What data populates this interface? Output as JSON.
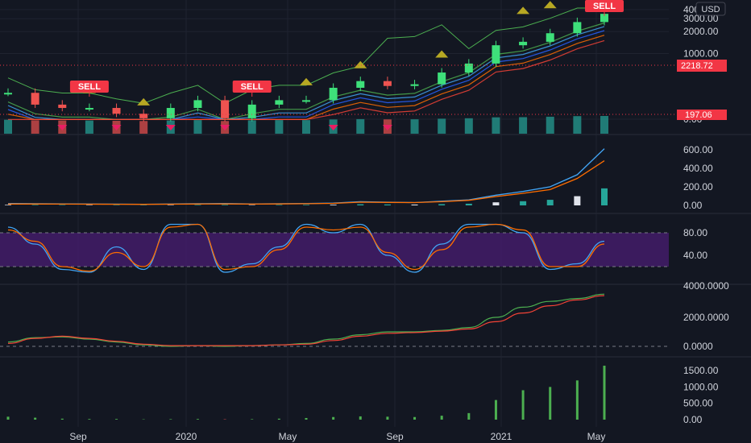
{
  "colors": {
    "background": "#131722",
    "grid": "#1f2330",
    "axis_text": "#d1d4dc",
    "up": "#26a69a",
    "down": "#ef5350",
    "bright_up": "#3ee07a",
    "sell_tag": "#f23645",
    "triangle_up": "#b7a823",
    "triangle_down": "#e91e63",
    "blue": "#2962ff",
    "light_blue": "#42a5f5",
    "orange": "#ff6d00",
    "green": "#4caf50",
    "red_line": "#f44336",
    "purple_band": "#4a1e73",
    "price_label_red": "#f23645"
  },
  "currency_badge": "USD",
  "price_labels": {
    "current": "2218.72",
    "low": "197.06"
  },
  "sell_tags": [
    "SELL",
    "SELL",
    "SELL"
  ],
  "x_axis_labels": [
    "Sep",
    "2020",
    "May",
    "Sep",
    "2021",
    "May"
  ],
  "chart_data": [
    {
      "type": "line",
      "panel": "price",
      "title": "",
      "series_type": "candlestick",
      "y_scale": "log",
      "y_ticks": [
        "4000.00",
        "3000.00",
        "2000.00",
        "1000.00",
        "0.00"
      ],
      "x": [
        "2019-07",
        "2019-08",
        "2019-09",
        "2019-10",
        "2019-11",
        "2019-12",
        "2020-01",
        "2020-02",
        "2020-03",
        "2020-04",
        "2020-05",
        "2020-06",
        "2020-07",
        "2020-08",
        "2020-09",
        "2020-10",
        "2020-11",
        "2020-12",
        "2021-01",
        "2021-02",
        "2021-03",
        "2021-04",
        "2021-05"
      ],
      "series": [
        {
          "values": [
            290,
            200,
            180,
            180,
            150,
            130,
            180,
            230,
            130,
            200,
            230,
            230,
            340,
            420,
            360,
            380,
            550,
            730,
            1300,
            1450,
            1900,
            2700,
            3500
          ]
        }
      ],
      "current_price": 2218.72,
      "low_label": 197.06
    },
    {
      "type": "bar",
      "panel": "volume_oscillator",
      "y_ticks": [
        "600.00",
        "400.00",
        "200.00",
        "0.00"
      ],
      "series": [
        {
          "values": [
            20,
            18,
            16,
            15,
            14,
            12,
            15,
            18,
            20,
            15,
            18,
            20,
            25,
            40,
            35,
            30,
            45,
            60,
            110,
            150,
            200,
            330,
            610
          ]
        },
        {
          "values": [
            15,
            15,
            14,
            13,
            12,
            11,
            13,
            15,
            16,
            14,
            16,
            18,
            22,
            35,
            32,
            30,
            40,
            55,
            95,
            130,
            170,
            290,
            480
          ]
        }
      ]
    },
    {
      "type": "line",
      "panel": "stochastic",
      "y_ticks": [
        "80.00",
        "40.00"
      ],
      "band": [
        20,
        80
      ],
      "series": [
        {
          "values": [
            90,
            60,
            15,
            10,
            55,
            15,
            95,
            95,
            10,
            25,
            55,
            95,
            80,
            95,
            40,
            10,
            60,
            95,
            95,
            80,
            15,
            25,
            65
          ]
        },
        {
          "values": [
            85,
            65,
            20,
            12,
            45,
            20,
            90,
            95,
            15,
            20,
            50,
            90,
            85,
            90,
            45,
            15,
            50,
            90,
            95,
            85,
            20,
            20,
            60
          ]
        }
      ]
    },
    {
      "type": "line",
      "panel": "macd",
      "y_ticks": [
        "4000.0000",
        "2000.0000",
        "0.0000"
      ],
      "series": [
        {
          "values": [
            300,
            600,
            650,
            500,
            300,
            100,
            0,
            50,
            0,
            50,
            100,
            200,
            500,
            800,
            1000,
            1000,
            1100,
            1300,
            2000,
            2700,
            3100,
            3300,
            3600
          ]
        },
        {
          "values": [
            200,
            550,
            700,
            550,
            350,
            150,
            50,
            50,
            50,
            50,
            100,
            150,
            400,
            700,
            900,
            950,
            1050,
            1200,
            1700,
            2300,
            2800,
            3200,
            3500
          ]
        }
      ]
    },
    {
      "type": "bar",
      "panel": "histogram",
      "y_ticks": [
        "1500.00",
        "1000.00",
        "500.00",
        "0.00"
      ],
      "series": [
        {
          "values": [
            90,
            60,
            30,
            20,
            20,
            10,
            15,
            20,
            10,
            15,
            30,
            50,
            80,
            100,
            90,
            80,
            120,
            200,
            600,
            900,
            1000,
            1200,
            1650
          ]
        }
      ]
    }
  ]
}
